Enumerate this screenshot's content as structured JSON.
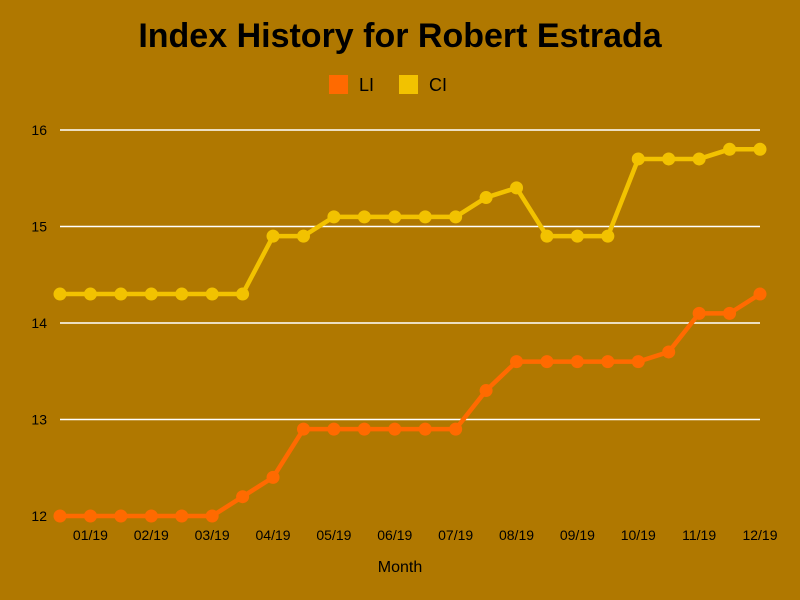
{
  "chart_data": {
    "type": "line",
    "title": "Index History for Robert Estrada",
    "xlabel": "Month",
    "ylabel": "",
    "ylim": [
      12,
      16
    ],
    "yticks": [
      "12",
      "13",
      "14",
      "15",
      "16"
    ],
    "x_tick_labels": [
      "01/19",
      "02/19",
      "03/19",
      "04/19",
      "05/19",
      "06/19",
      "07/19",
      "08/19",
      "09/19",
      "10/19",
      "11/19",
      "12/19"
    ],
    "grid": true,
    "legend_position": "top-center",
    "series": [
      {
        "name": "LI",
        "color": "#ff6a00",
        "values": [
          12.0,
          12.0,
          12.0,
          12.0,
          12.0,
          12.0,
          12.2,
          12.4,
          12.9,
          12.9,
          12.9,
          12.9,
          12.9,
          12.9,
          13.3,
          13.6,
          13.6,
          13.6,
          13.6,
          13.6,
          13.7,
          14.1,
          14.1,
          14.3
        ]
      },
      {
        "name": "CI",
        "color": "#f2c200",
        "values": [
          14.3,
          14.3,
          14.3,
          14.3,
          14.3,
          14.3,
          14.3,
          14.9,
          14.9,
          15.1,
          15.1,
          15.1,
          15.1,
          15.1,
          15.3,
          15.4,
          14.9,
          14.9,
          14.9,
          15.7,
          15.7,
          15.7,
          15.8,
          15.8
        ]
      }
    ]
  }
}
